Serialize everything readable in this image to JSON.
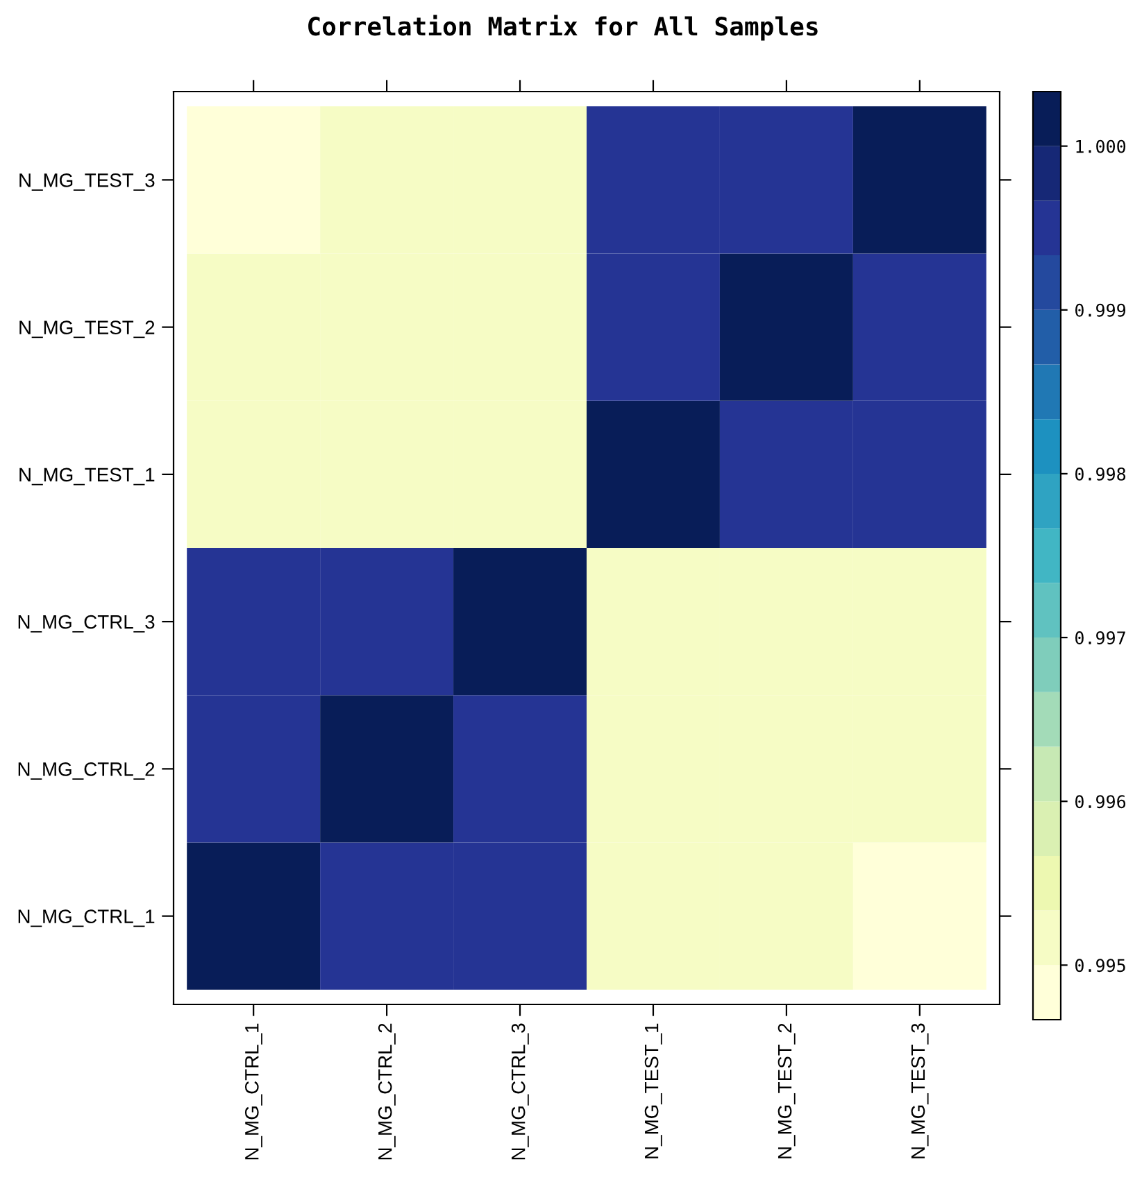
{
  "chart_data": {
    "type": "heatmap",
    "title": "Correlation Matrix for All Samples",
    "categories": [
      "N_MG_CTRL_1",
      "N_MG_CTRL_2",
      "N_MG_CTRL_3",
      "N_MG_TEST_1",
      "N_MG_TEST_2",
      "N_MG_TEST_3"
    ],
    "y_categories": [
      "N_MG_TEST_3",
      "N_MG_TEST_2",
      "N_MG_TEST_1",
      "N_MG_CTRL_3",
      "N_MG_CTRL_2",
      "N_MG_CTRL_1"
    ],
    "cells": [
      [
        0.9949,
        0.9952,
        0.9952,
        0.9995,
        0.9995,
        1.0
      ],
      [
        0.9952,
        0.9952,
        0.9952,
        0.9995,
        1.0,
        0.9995
      ],
      [
        0.9952,
        0.9952,
        0.9952,
        1.0,
        0.9995,
        0.9995
      ],
      [
        0.9995,
        0.9995,
        1.0,
        0.9952,
        0.9952,
        0.9952
      ],
      [
        0.9995,
        1.0,
        0.9995,
        0.9952,
        0.9952,
        0.9952
      ],
      [
        1.0,
        0.9995,
        0.9995,
        0.9952,
        0.9952,
        0.9949
      ]
    ],
    "clim": [
      0.994667,
      1.000333
    ],
    "cticks": [
      0.995,
      0.996,
      0.997,
      0.998,
      0.999,
      {
        "value": 1.0,
        "label": "1.000"
      }
    ],
    "grid": false
  }
}
